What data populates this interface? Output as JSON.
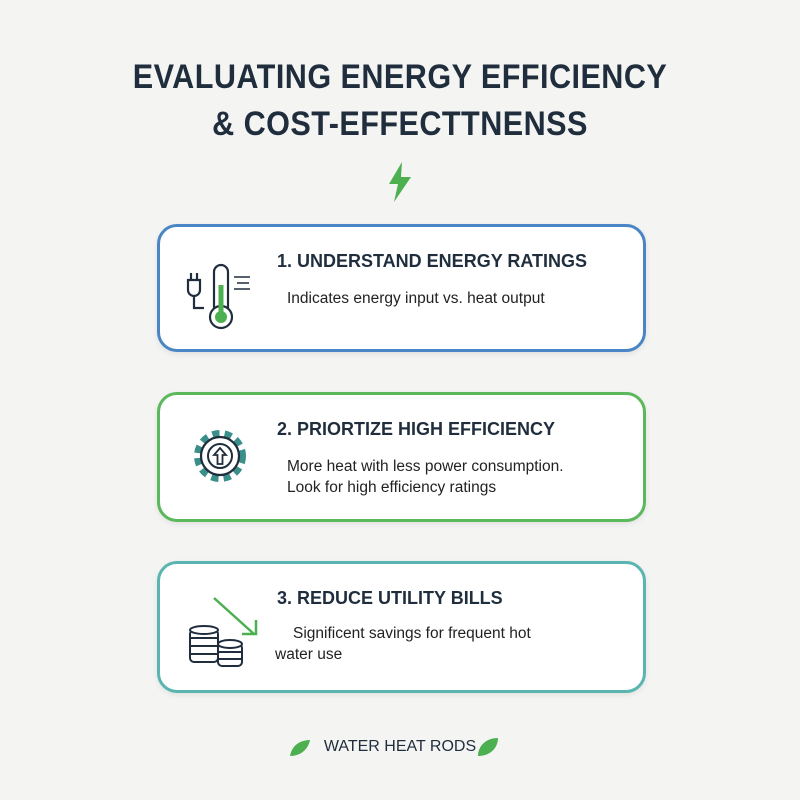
{
  "header": {
    "title_lines": [
      "EVALUATING ENERGY EFFICIENCY",
      "& COST-EFFECTTNENSS"
    ]
  },
  "cards": [
    {
      "title": "1. UNDERSTAND ENERGY RATINGS",
      "lines": [
        "Indicates energy input vs. heat output"
      ]
    },
    {
      "title": "2. PRIORTIZE HIGH EFFICIENCY",
      "lines": [
        "More heat with less power consumption.",
        "Look for high efficiency ratings"
      ]
    },
    {
      "title": "3. REDUCE UTILITY BILLS",
      "lines": [
        "Significent savings for frequent hot",
        "water use"
      ]
    }
  ],
  "footer": {
    "brand": "WATER HEAT RODS"
  }
}
